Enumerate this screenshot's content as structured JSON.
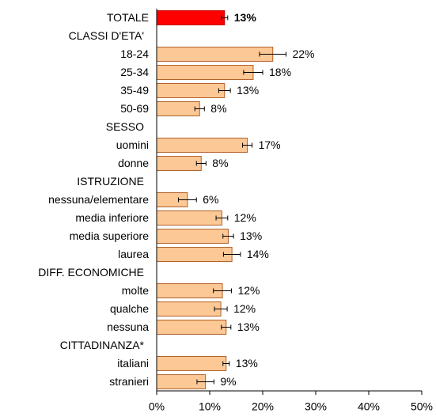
{
  "chart_data": {
    "type": "bar",
    "orientation": "horizontal",
    "categories": [
      "TOTALE",
      "CLASSI D'ETA'",
      "18-24",
      "25-34",
      "35-49",
      "50-69",
      "SESSO",
      "uomini",
      "donne",
      "ISTRUZIONE",
      "nessuna/elementare",
      "media inferiore",
      "media superiore",
      "laurea",
      "DIFF. ECONOMICHE",
      "molte",
      "qualche",
      "nessuna",
      "CITTADINANZA*",
      "italiani",
      "stranieri"
    ],
    "values": [
      12.8,
      null,
      21.9,
      18.2,
      12.8,
      8.1,
      null,
      17.1,
      8.4,
      null,
      5.8,
      12.3,
      13.5,
      14.2,
      null,
      12.4,
      12.1,
      13.1,
      null,
      13.1,
      9.2
    ],
    "value_labels": [
      "13%",
      null,
      "22%",
      "18%",
      "13%",
      "8%",
      null,
      "17%",
      "8%",
      null,
      "6%",
      "12%",
      "13%",
      "14%",
      null,
      "12%",
      "12%",
      "13%",
      null,
      "13%",
      "9%"
    ],
    "errors": [
      0.6,
      null,
      2.5,
      1.8,
      1.1,
      0.9,
      null,
      0.9,
      0.9,
      null,
      1.7,
      1.1,
      1.0,
      1.6,
      null,
      1.7,
      1.2,
      0.9,
      null,
      0.6,
      1.6
    ],
    "colors": [
      "#ff0000",
      null,
      "#fcc896",
      "#fcc896",
      "#fcc896",
      "#fcc896",
      null,
      "#fcc896",
      "#fcc896",
      null,
      "#fcc896",
      "#fcc896",
      "#fcc896",
      "#fcc896",
      null,
      "#fcc896",
      "#fcc896",
      "#fcc896",
      null,
      "#fcc896",
      "#fcc896"
    ],
    "xlim": [
      0,
      50
    ],
    "xticks": [
      {
        "value": 0,
        "label": "0%"
      },
      {
        "value": 10,
        "label": "10%"
      },
      {
        "value": 20,
        "label": "20%"
      },
      {
        "value": 30,
        "label": "30%"
      },
      {
        "value": 40,
        "label": "40%"
      },
      {
        "value": 50,
        "label": "50%"
      }
    ],
    "grid": false
  }
}
